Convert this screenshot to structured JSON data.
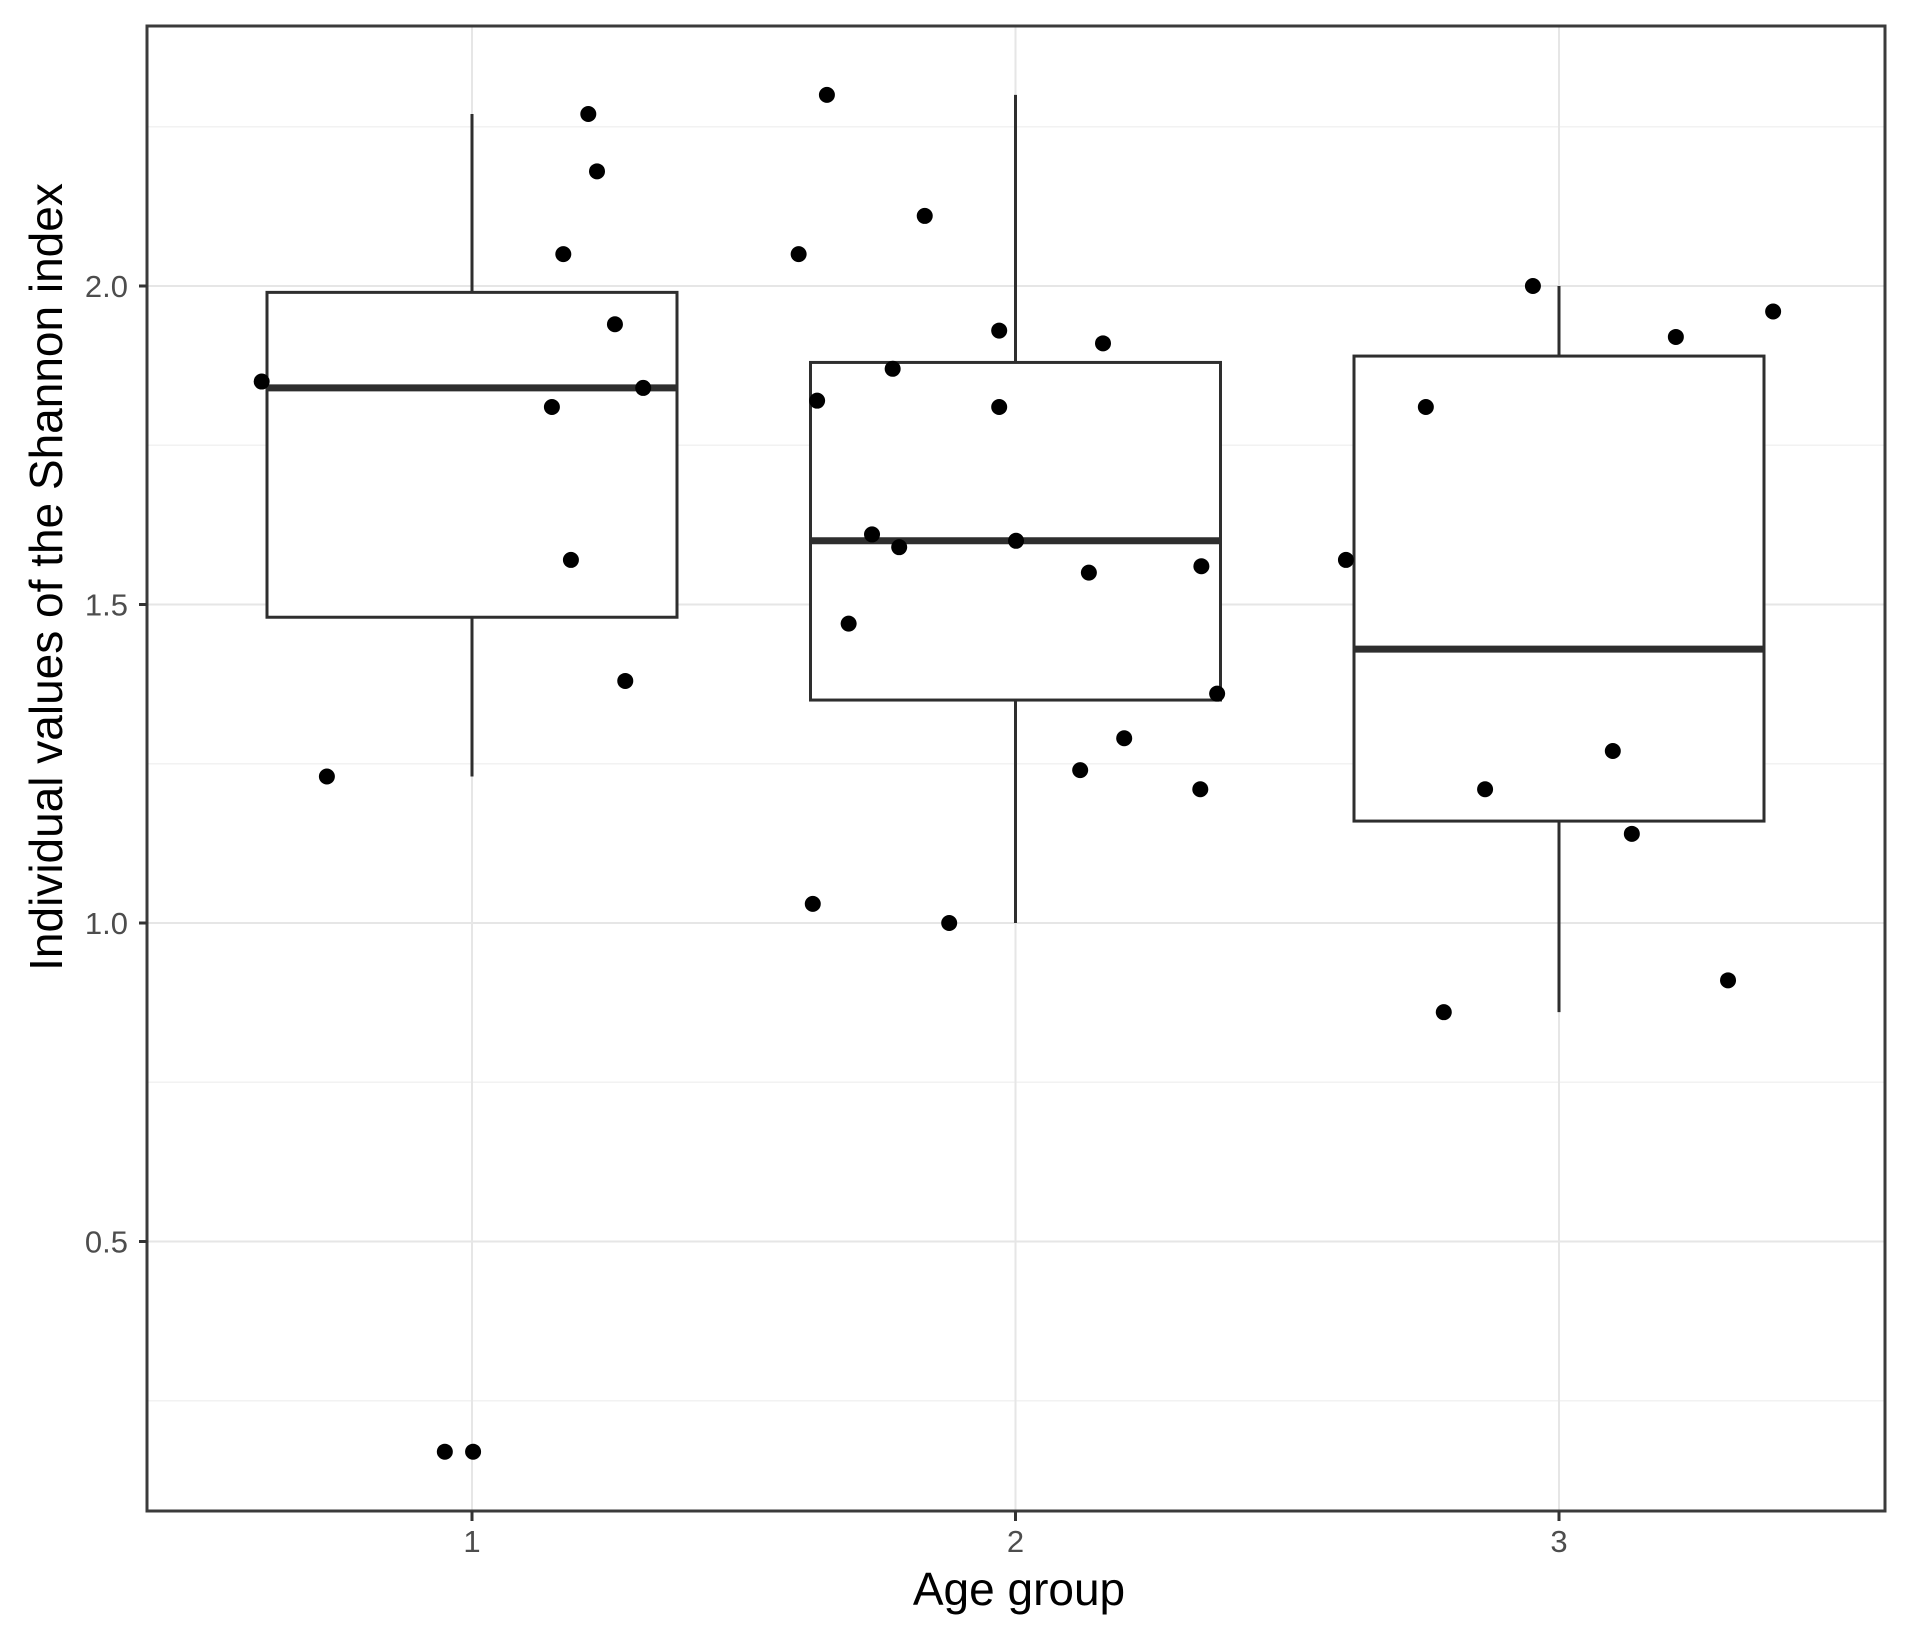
{
  "figure": {
    "background": "#ffffff"
  },
  "chart_data": {
    "type": "boxplot",
    "subtype": "boxplot-with-jittered-points",
    "title": "",
    "xlabel": "Age group",
    "ylabel": "Individual values of the Shannon index",
    "x_categories": [
      "1",
      "2",
      "3"
    ],
    "y_ticks": [
      0.5,
      1.0,
      1.5,
      2.0
    ],
    "y_tick_labels": [
      "0.5",
      "1.0",
      "1.5",
      "2.0"
    ],
    "y_minor_gridlines": [
      0.25,
      0.75,
      1.25,
      1.75,
      2.25
    ],
    "ylim": [
      0.08,
      2.41
    ],
    "grid": "horizontal major+minor, vertical major at categories",
    "legend": "none",
    "groups": [
      {
        "category": "1",
        "n_points": 12,
        "box": {
          "whisker_low": 1.23,
          "q1": 1.48,
          "median": 1.84,
          "q3": 1.99,
          "whisker_high": 2.27
        },
        "outliers": [
          0.17,
          0.17
        ],
        "points": [
          {
            "dx": 0.214,
            "y": 2.27
          },
          {
            "dx": 0.23,
            "y": 2.18
          },
          {
            "dx": 0.168,
            "y": 2.05
          },
          {
            "dx": 0.263,
            "y": 1.94
          },
          {
            "dx": -0.387,
            "y": 1.85
          },
          {
            "dx": 0.315,
            "y": 1.84
          },
          {
            "dx": 0.147,
            "y": 1.81
          },
          {
            "dx": 0.182,
            "y": 1.57
          },
          {
            "dx": 0.282,
            "y": 1.38
          },
          {
            "dx": -0.267,
            "y": 1.23
          },
          {
            "dx": -0.05,
            "y": 0.17
          },
          {
            "dx": 0.002,
            "y": 0.17
          }
        ]
      },
      {
        "category": "2",
        "n_points": 20,
        "box": {
          "whisker_low": 1.0,
          "q1": 1.35,
          "median": 1.6,
          "q3": 1.88,
          "whisker_high": 2.3
        },
        "outliers": [],
        "points": [
          {
            "dx": -0.347,
            "y": 2.3
          },
          {
            "dx": -0.167,
            "y": 2.11
          },
          {
            "dx": -0.399,
            "y": 2.05
          },
          {
            "dx": -0.03,
            "y": 1.93
          },
          {
            "dx": 0.161,
            "y": 1.91
          },
          {
            "dx": -0.226,
            "y": 1.87
          },
          {
            "dx": -0.365,
            "y": 1.82
          },
          {
            "dx": -0.03,
            "y": 1.81
          },
          {
            "dx": -0.264,
            "y": 1.61
          },
          {
            "dx": 0.001,
            "y": 1.6
          },
          {
            "dx": -0.214,
            "y": 1.59
          },
          {
            "dx": 0.342,
            "y": 1.56
          },
          {
            "dx": 0.135,
            "y": 1.55
          },
          {
            "dx": -0.307,
            "y": 1.47
          },
          {
            "dx": 0.371,
            "y": 1.36
          },
          {
            "dx": 0.2,
            "y": 1.29
          },
          {
            "dx": 0.119,
            "y": 1.24
          },
          {
            "dx": 0.34,
            "y": 1.21
          },
          {
            "dx": -0.373,
            "y": 1.03
          },
          {
            "dx": -0.122,
            "y": 1.0
          }
        ]
      },
      {
        "category": "3",
        "n_points": 10,
        "box": {
          "whisker_low": 0.86,
          "q1": 1.16,
          "median": 1.43,
          "q3": 1.89,
          "whisker_high": 2.0
        },
        "outliers": [],
        "points": [
          {
            "dx": -0.048,
            "y": 2.0
          },
          {
            "dx": 0.394,
            "y": 1.96
          },
          {
            "dx": 0.215,
            "y": 1.92
          },
          {
            "dx": -0.245,
            "y": 1.81
          },
          {
            "dx": -0.392,
            "y": 1.57
          },
          {
            "dx": 0.099,
            "y": 1.27
          },
          {
            "dx": -0.136,
            "y": 1.21
          },
          {
            "dx": 0.134,
            "y": 1.14
          },
          {
            "dx": 0.311,
            "y": 0.91
          },
          {
            "dx": -0.212,
            "y": 0.86
          }
        ]
      }
    ],
    "colors": {
      "point": "#000000",
      "box_stroke": "#2e2e2e",
      "box_fill": "#ffffff",
      "median": "#2e2e2e",
      "panel_border": "#3b3b3b",
      "grid_major": "#e6e6e6",
      "grid_minor": "#f2f2f2",
      "tick": "#333333",
      "tick_label": "#4d4d4d",
      "axis_title": "#000000",
      "background": "#ffffff"
    }
  }
}
